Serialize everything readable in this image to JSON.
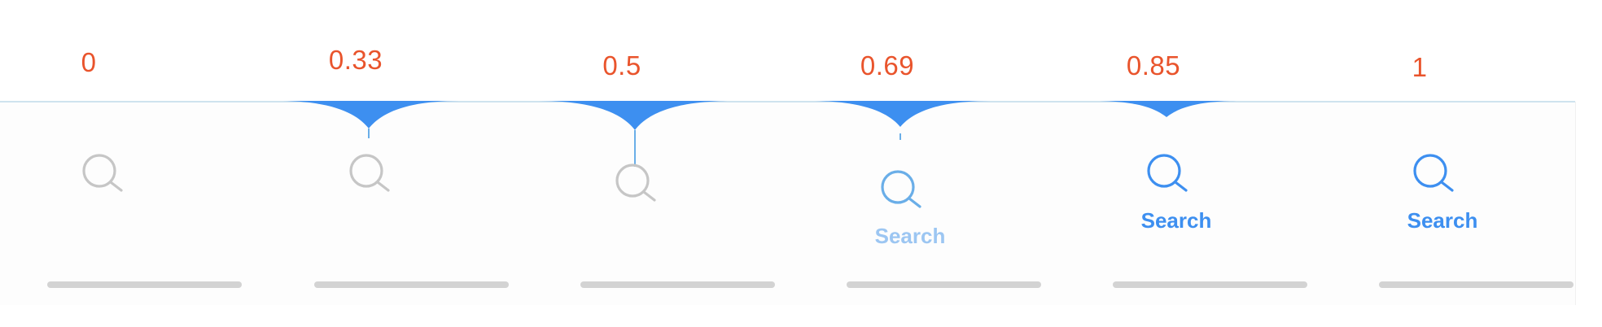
{
  "colors": {
    "value_label": "#e9542c",
    "bubble_fill": "#3d8ff0",
    "bubble_line": "#6aaee8",
    "icon_inactive": "#c6c6c6",
    "icon_active": "#3d8ff0",
    "label_faded": "#9cc6f2",
    "label_active": "#3d8ff0",
    "home_indicator": "#d3d3d3"
  },
  "icon": "search-icon",
  "tab_label": "Search",
  "frames": [
    {
      "value": "0",
      "progress": 0.0,
      "show_label": false
    },
    {
      "value": "0.33",
      "progress": 0.33,
      "show_label": false
    },
    {
      "value": "0.5",
      "progress": 0.5,
      "show_label": false
    },
    {
      "value": "0.69",
      "progress": 0.69,
      "show_label": true
    },
    {
      "value": "0.85",
      "progress": 0.85,
      "show_label": true
    },
    {
      "value": "1",
      "progress": 1.0,
      "show_label": true
    }
  ]
}
